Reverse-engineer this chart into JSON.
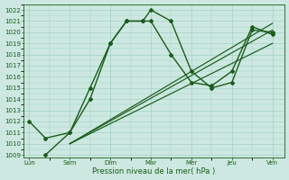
{
  "x_labels": [
    "Lun",
    "Sam",
    "Dim",
    "Mar",
    "Mer",
    "Jeu",
    "Ven"
  ],
  "line1_x": [
    0,
    0.4,
    1.0,
    1.5,
    2.0,
    2.4,
    2.8,
    3.0,
    3.5,
    4.0,
    4.5,
    5.0,
    5.5,
    6.0
  ],
  "line1_y": [
    1012.0,
    1010.5,
    1011.0,
    1015.0,
    1019.0,
    1021.0,
    1021.0,
    1022.0,
    1021.0,
    1016.5,
    1015.0,
    1015.5,
    1020.2,
    1020.0
  ],
  "line2_x": [
    0.4,
    1.0,
    1.5,
    2.0,
    2.4,
    2.8,
    3.0,
    3.5,
    4.0,
    4.5,
    5.0,
    5.5,
    6.0
  ],
  "line2_y": [
    1009.0,
    1011.0,
    1014.0,
    1019.0,
    1021.0,
    1021.0,
    1021.0,
    1018.0,
    1015.5,
    1015.2,
    1016.5,
    1020.5,
    1019.8
  ],
  "straight_lines": [
    {
      "x": [
        1.0,
        6.0
      ],
      "y": [
        1010.0,
        1019.0
      ]
    },
    {
      "x": [
        1.0,
        6.0
      ],
      "y": [
        1010.0,
        1020.8
      ]
    },
    {
      "x": [
        1.0,
        6.0
      ],
      "y": [
        1010.0,
        1020.2
      ]
    }
  ],
  "yticks": [
    1009,
    1010,
    1011,
    1012,
    1013,
    1014,
    1015,
    1016,
    1017,
    1018,
    1019,
    1020,
    1021,
    1022
  ],
  "ylim": [
    1008.8,
    1022.5
  ],
  "xlim": [
    -0.15,
    6.3
  ],
  "xlabel": "Pression niveau de la mer( hPa )",
  "bg_color": "#cce8e0",
  "grid_color": "#99ccc2",
  "line_color": "#1a5c1a",
  "text_color": "#1a5c1a",
  "marker": "D",
  "markersize": 2.0,
  "linewidth": 1.0
}
